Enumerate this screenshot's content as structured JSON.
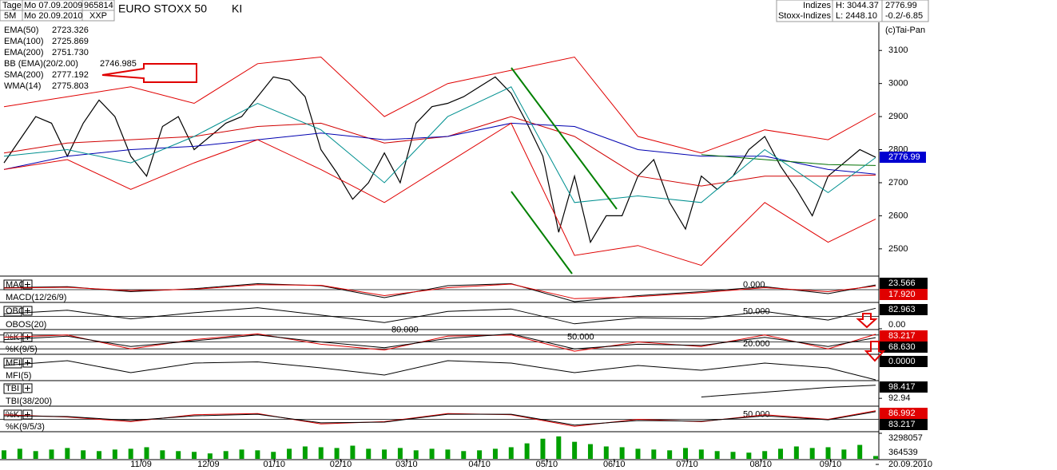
{
  "header": {
    "period": "Tage",
    "from": "Mo 07.09.2009",
    "code": "965814",
    "interval": "5M",
    "to": "Mo 20.09.2010",
    "symbol": "XXP",
    "flag": "KI",
    "category": "Indizes",
    "group": "Stoxx-Indizes",
    "high": "H: 3044.37",
    "low": "L: 2448.10",
    "last": "2776.99",
    "change": "-0.2/-6.85",
    "copyright": "(c)Tai-Pan"
  },
  "chart_data": [
    {
      "type": "line",
      "title": "EURO STOXX 50",
      "color": "#000000",
      "date_label": "20.09.2010",
      "xlim": [
        -0.1,
        55.2
      ],
      "ylim": [
        2420,
        3185
      ],
      "yticks": [
        3100,
        3000,
        2900,
        2800,
        2700,
        2600,
        2500
      ],
      "xticks": [
        {
          "value": 8.65,
          "label": "11/09"
        },
        {
          "value": 12.9,
          "label": "12/09"
        },
        {
          "value": 17.05,
          "label": "01/10"
        },
        {
          "value": 21.25,
          "label": "02/10"
        },
        {
          "value": 25.4,
          "label": "03/10"
        },
        {
          "value": 30,
          "label": "04/10"
        },
        {
          "value": 34.25,
          "label": "05/10"
        },
        {
          "value": 38.5,
          "label": "06/10"
        },
        {
          "value": 43.1,
          "label": "07/10"
        },
        {
          "value": 47.75,
          "label": "08/10"
        },
        {
          "value": 52.15,
          "label": "09/10"
        }
      ],
      "x": [
        0,
        1,
        2,
        3,
        4,
        5,
        6,
        7,
        8,
        9,
        10,
        11,
        12,
        13,
        14,
        15,
        16,
        17,
        18,
        19,
        20,
        21,
        22,
        23,
        24,
        25,
        26,
        27,
        28,
        29,
        30,
        31,
        32,
        33,
        34,
        35,
        36,
        37,
        38,
        39,
        40,
        41,
        42,
        43,
        44,
        45,
        46,
        47,
        48,
        49,
        50,
        51,
        52,
        53,
        54,
        55
      ],
      "values": [
        2760,
        2830,
        2900,
        2880,
        2780,
        2880,
        2950,
        2900,
        2780,
        2720,
        2870,
        2900,
        2800,
        2840,
        2880,
        2900,
        2960,
        3020,
        3010,
        2960,
        2800,
        2730,
        2650,
        2700,
        2790,
        2700,
        2880,
        2930,
        2940,
        2960,
        2990,
        3020,
        2970,
        2880,
        2780,
        2550,
        2720,
        2520,
        2600,
        2600,
        2720,
        2770,
        2640,
        2560,
        2720,
        2680,
        2720,
        2800,
        2840,
        2750,
        2680,
        2600,
        2720,
        2760,
        2800,
        2776.99
      ],
      "overlay_x": [
        0,
        4,
        8,
        12,
        16,
        20,
        24,
        28,
        32,
        36,
        40,
        44,
        48,
        52,
        55
      ],
      "overlays": [
        {
          "name": "EMA(50)",
          "reading": "2723.326",
          "color": "#d00000",
          "values": [
            2790,
            2820,
            2830,
            2840,
            2870,
            2880,
            2820,
            2840,
            2900,
            2840,
            2720,
            2690,
            2720,
            2720,
            2723
          ]
        },
        {
          "name": "EMA(100)",
          "reading": "2725.869",
          "color": "#0000b0",
          "values": [
            2740,
            2780,
            2800,
            2810,
            2830,
            2850,
            2830,
            2840,
            2880,
            2870,
            2800,
            2780,
            2780,
            2740,
            2726
          ]
        },
        {
          "name": "EMA(200)",
          "reading": "2751.730",
          "color": "#007000",
          "values": [
            null,
            null,
            null,
            null,
            null,
            null,
            null,
            null,
            null,
            null,
            null,
            2785,
            2770,
            2755,
            2752
          ]
        },
        {
          "name": "BB (EMA)(20/2.00)",
          "reading": "2746.985",
          "color": "#e00000",
          "upper": [
            2930,
            2960,
            2990,
            2940,
            3060,
            3080,
            2900,
            3000,
            3040,
            3080,
            2840,
            2790,
            2860,
            2830,
            2910
          ],
          "lower": [
            2740,
            2770,
            2680,
            2760,
            2830,
            2740,
            2640,
            2760,
            2880,
            2480,
            2510,
            2450,
            2640,
            2520,
            2590
          ]
        },
        {
          "name": "SMA(200)",
          "reading": "2777.192",
          "color": "#000080"
        },
        {
          "name": "WMA(14)",
          "reading": "2775.803",
          "color": "#009090",
          "values": [
            2780,
            2800,
            2760,
            2840,
            2940,
            2860,
            2700,
            2900,
            2990,
            2640,
            2660,
            2640,
            2800,
            2670,
            2776
          ]
        }
      ]
    },
    {
      "type": "line",
      "title": "MACD",
      "subtitle": "MACD(12/26/9)",
      "ylim": [
        -60,
        60
      ],
      "levels": [
        {
          "value": 0,
          "label": "0.000"
        }
      ],
      "x": [
        0,
        4,
        8,
        12,
        16,
        20,
        24,
        28,
        32,
        36,
        40,
        44,
        48,
        52,
        55
      ],
      "series": [
        {
          "color": "#000000",
          "reading": "23.566",
          "values": [
            10,
            15,
            -10,
            5,
            30,
            20,
            -40,
            20,
            30,
            -60,
            -30,
            -10,
            15,
            -20,
            23.566
          ]
        },
        {
          "color": "#e00000",
          "reading": "17.920",
          "values": [
            8,
            12,
            -5,
            2,
            25,
            22,
            -30,
            10,
            28,
            -45,
            -35,
            -15,
            10,
            -10,
            17.92
          ]
        }
      ]
    },
    {
      "type": "line",
      "title": "OBOS",
      "subtitle": "OBOS(20)",
      "ylim": [
        0,
        100
      ],
      "yticks": [
        {
          "value": 0,
          "label": "0.00"
        }
      ],
      "levels": [
        {
          "value": 50,
          "label": "50.000"
        }
      ],
      "x": [
        0,
        4,
        8,
        12,
        16,
        20,
        24,
        28,
        32,
        36,
        40,
        44,
        48,
        52,
        55
      ],
      "series": [
        {
          "color": "#000000",
          "reading": "82.963",
          "values": [
            60,
            75,
            40,
            65,
            85,
            55,
            25,
            70,
            80,
            20,
            45,
            40,
            70,
            35,
            82.963
          ]
        }
      ]
    },
    {
      "type": "line",
      "title": "%K",
      "subtitle": "%K(9/5)",
      "ylim": [
        0,
        100
      ],
      "levels": [
        {
          "value": 80,
          "label": "80.000"
        },
        {
          "value": 50,
          "label": "50.000"
        },
        {
          "value": 20,
          "label": "20.000"
        }
      ],
      "x": [
        0,
        4,
        8,
        12,
        16,
        20,
        24,
        28,
        32,
        36,
        40,
        44,
        48,
        52,
        55
      ],
      "series": [
        {
          "color": "#e00000",
          "reading": "83.217",
          "values": [
            70,
            80,
            20,
            60,
            85,
            40,
            15,
            75,
            80,
            10,
            50,
            30,
            80,
            20,
            83.217
          ]
        },
        {
          "color": "#000000",
          "reading": "68.630",
          "values": [
            60,
            75,
            30,
            55,
            80,
            50,
            25,
            65,
            85,
            20,
            40,
            35,
            70,
            30,
            68.63
          ]
        }
      ]
    },
    {
      "type": "line",
      "title": "MFI",
      "subtitle": "MFI(5)",
      "ylim": [
        0,
        100
      ],
      "yticks": [
        {
          "value": 100,
          "label": "100.00"
        }
      ],
      "x": [
        0,
        4,
        8,
        12,
        16,
        20,
        24,
        28,
        32,
        36,
        40,
        44,
        48,
        52,
        55
      ],
      "series": [
        {
          "color": "#000000",
          "reading": "0.0000",
          "values": [
            60,
            80,
            30,
            70,
            75,
            50,
            20,
            80,
            70,
            30,
            60,
            40,
            70,
            50,
            0
          ]
        }
      ]
    },
    {
      "type": "line",
      "title": "TBI",
      "subtitle": "TBI(38/200)",
      "ylim": [
        90,
        100
      ],
      "yticks": [
        92.94
      ],
      "x": [
        0,
        4,
        8,
        12,
        16,
        20,
        24,
        28,
        32,
        36,
        40,
        44,
        48,
        52,
        55
      ],
      "series": [
        {
          "color": "#000000",
          "reading": "98.417",
          "values": [
            null,
            null,
            null,
            null,
            null,
            null,
            null,
            null,
            null,
            null,
            null,
            93.5,
            95.5,
            97.5,
            98.417
          ]
        }
      ]
    },
    {
      "type": "line",
      "title": "%K",
      "subtitle": "%K(9/5/3)",
      "ylim": [
        0,
        100
      ],
      "levels": [
        {
          "value": 50,
          "label": "50.000"
        }
      ],
      "x": [
        0,
        4,
        8,
        12,
        16,
        20,
        24,
        28,
        32,
        36,
        40,
        44,
        48,
        52,
        55
      ],
      "series": [
        {
          "color": "#e00000",
          "reading": "86.992",
          "values": [
            70,
            60,
            40,
            70,
            75,
            30,
            40,
            75,
            70,
            20,
            50,
            40,
            70,
            50,
            86.992
          ]
        },
        {
          "color": "#000000",
          "reading": "83.217",
          "values": [
            65,
            62,
            45,
            65,
            72,
            35,
            38,
            72,
            72,
            25,
            45,
            42,
            65,
            48,
            83.217
          ]
        }
      ]
    },
    {
      "type": "bar",
      "color": "#00a000",
      "ylim": [
        0,
        3300000
      ],
      "yticks": [
        3298057
      ],
      "x": [
        0,
        1,
        2,
        3,
        4,
        5,
        6,
        7,
        8,
        9,
        10,
        11,
        12,
        13,
        14,
        15,
        16,
        17,
        18,
        19,
        20,
        21,
        22,
        23,
        24,
        25,
        26,
        27,
        28,
        29,
        30,
        31,
        32,
        33,
        34,
        35,
        36,
        37,
        38,
        39,
        40,
        41,
        42,
        43,
        44,
        45,
        46,
        47,
        48,
        49,
        50,
        51,
        52,
        53,
        54,
        55
      ],
      "values": [
        1100000,
        1300000,
        1000000,
        1200000,
        1400000,
        1100000,
        1000000,
        1200000,
        1300000,
        1500000,
        1100000,
        1000000,
        900000,
        700000,
        1000000,
        1200000,
        1100000,
        900000,
        1300000,
        1600000,
        1500000,
        1400000,
        1700000,
        1300000,
        1200000,
        1400000,
        1100000,
        1300000,
        1200000,
        1000000,
        1100000,
        1300000,
        1500000,
        2000000,
        2600000,
        2900000,
        2200000,
        1900000,
        1600000,
        1500000,
        1300000,
        1200000,
        1100000,
        1400000,
        1200000,
        1000000,
        900000,
        800000,
        1000000,
        1300000,
        1600000,
        1400000,
        1500000,
        1200000,
        1800000,
        364539
      ]
    }
  ]
}
